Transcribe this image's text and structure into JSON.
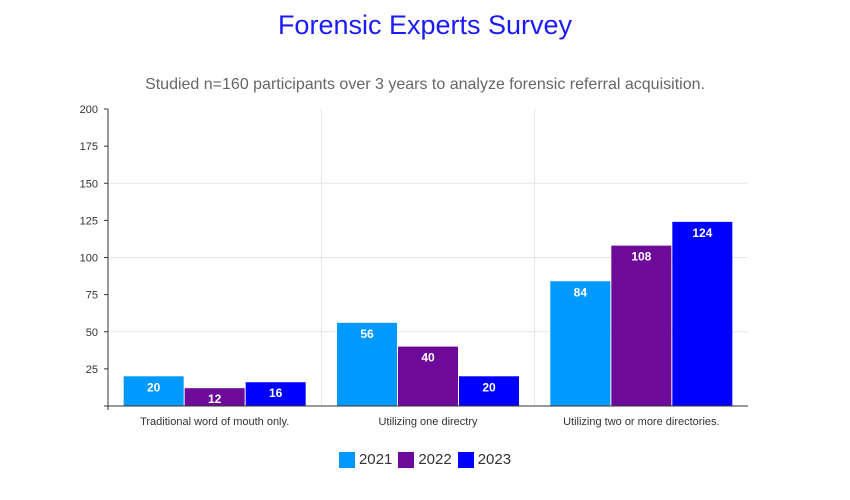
{
  "title": "Forensic Experts Survey",
  "subtitle": "Studied n=160 participants over 3 years to analyze forensic referral acquisition.",
  "chart_data": {
    "type": "bar",
    "title": "Forensic Experts Survey",
    "subtitle": "Studied n=160 participants over 3 years to analyze forensic referral acquisition.",
    "categories": [
      "Traditional word of mouth only.",
      "Utilizing one directry",
      "Utilizing two or more directories."
    ],
    "series": [
      {
        "name": "2021",
        "color": "#0099ff",
        "values": [
          20,
          56,
          84
        ]
      },
      {
        "name": "2022",
        "color": "#6e0a9a",
        "values": [
          12,
          40,
          108
        ]
      },
      {
        "name": "2023",
        "color": "#0000ff",
        "values": [
          16,
          20,
          124
        ]
      }
    ],
    "ylim": [
      0,
      200
    ],
    "yticks": [
      25,
      50,
      75,
      100,
      125,
      150,
      175,
      200
    ],
    "xlabel": "",
    "ylabel": "",
    "grid": true,
    "legend": "bottom-center",
    "data_labels": true
  }
}
